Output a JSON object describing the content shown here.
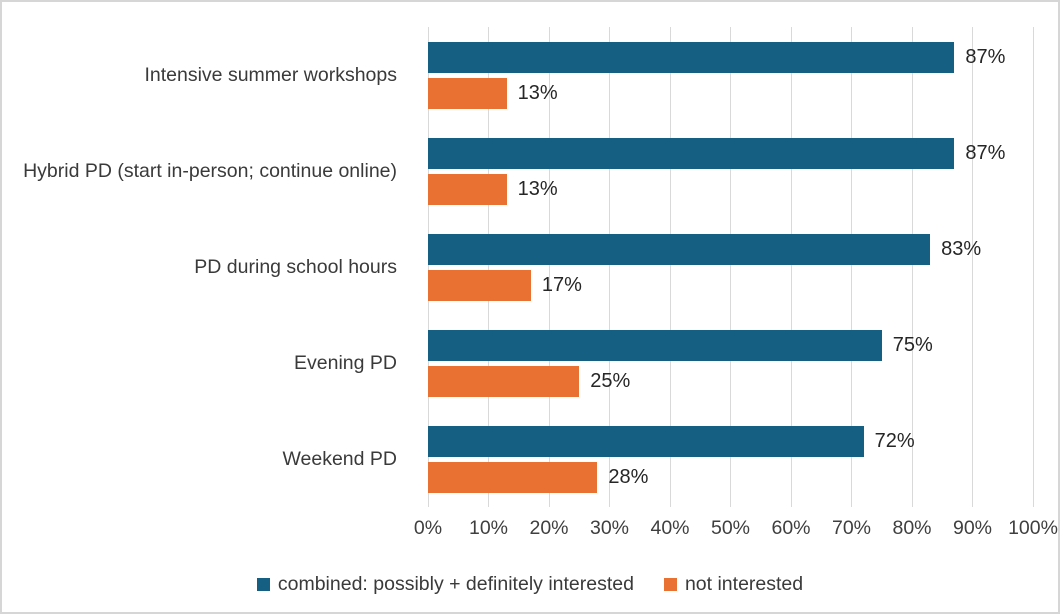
{
  "frame": {
    "background_color": "#ffffff",
    "border_color": "#d6d6d6"
  },
  "chart_data": {
    "type": "bar",
    "orientation": "horizontal",
    "title": "",
    "xlabel": "",
    "ylabel": "",
    "categories": [
      "Intensive summer workshops",
      "Hybrid PD (start in-person; continue online)",
      "PD during school hours",
      "Evening PD",
      "Weekend PD"
    ],
    "series": [
      {
        "name": "combined: possibly + definitely interested",
        "key": "combined-interested",
        "color": "#156082",
        "values": [
          87,
          87,
          83,
          75,
          72
        ],
        "labels": [
          "87%",
          "87%",
          "83%",
          "75%",
          "72%"
        ]
      },
      {
        "name": "not interested",
        "key": "not-interested",
        "color": "#E97132",
        "values": [
          13,
          13,
          17,
          25,
          28
        ],
        "labels": [
          "13%",
          "13%",
          "17%",
          "25%",
          "28%"
        ]
      }
    ],
    "axis": {
      "min": 0,
      "max": 100,
      "tick_step": 10,
      "tick_labels": [
        "0%",
        "10%",
        "20%",
        "30%",
        "40%",
        "50%",
        "60%",
        "70%",
        "80%",
        "90%",
        "100%"
      ],
      "gridlines": true,
      "gridline_color": "#d9d9d9"
    },
    "legend": {
      "position": "bottom",
      "entries": [
        "combined: possibly + definitely interested",
        "not interested"
      ]
    }
  }
}
